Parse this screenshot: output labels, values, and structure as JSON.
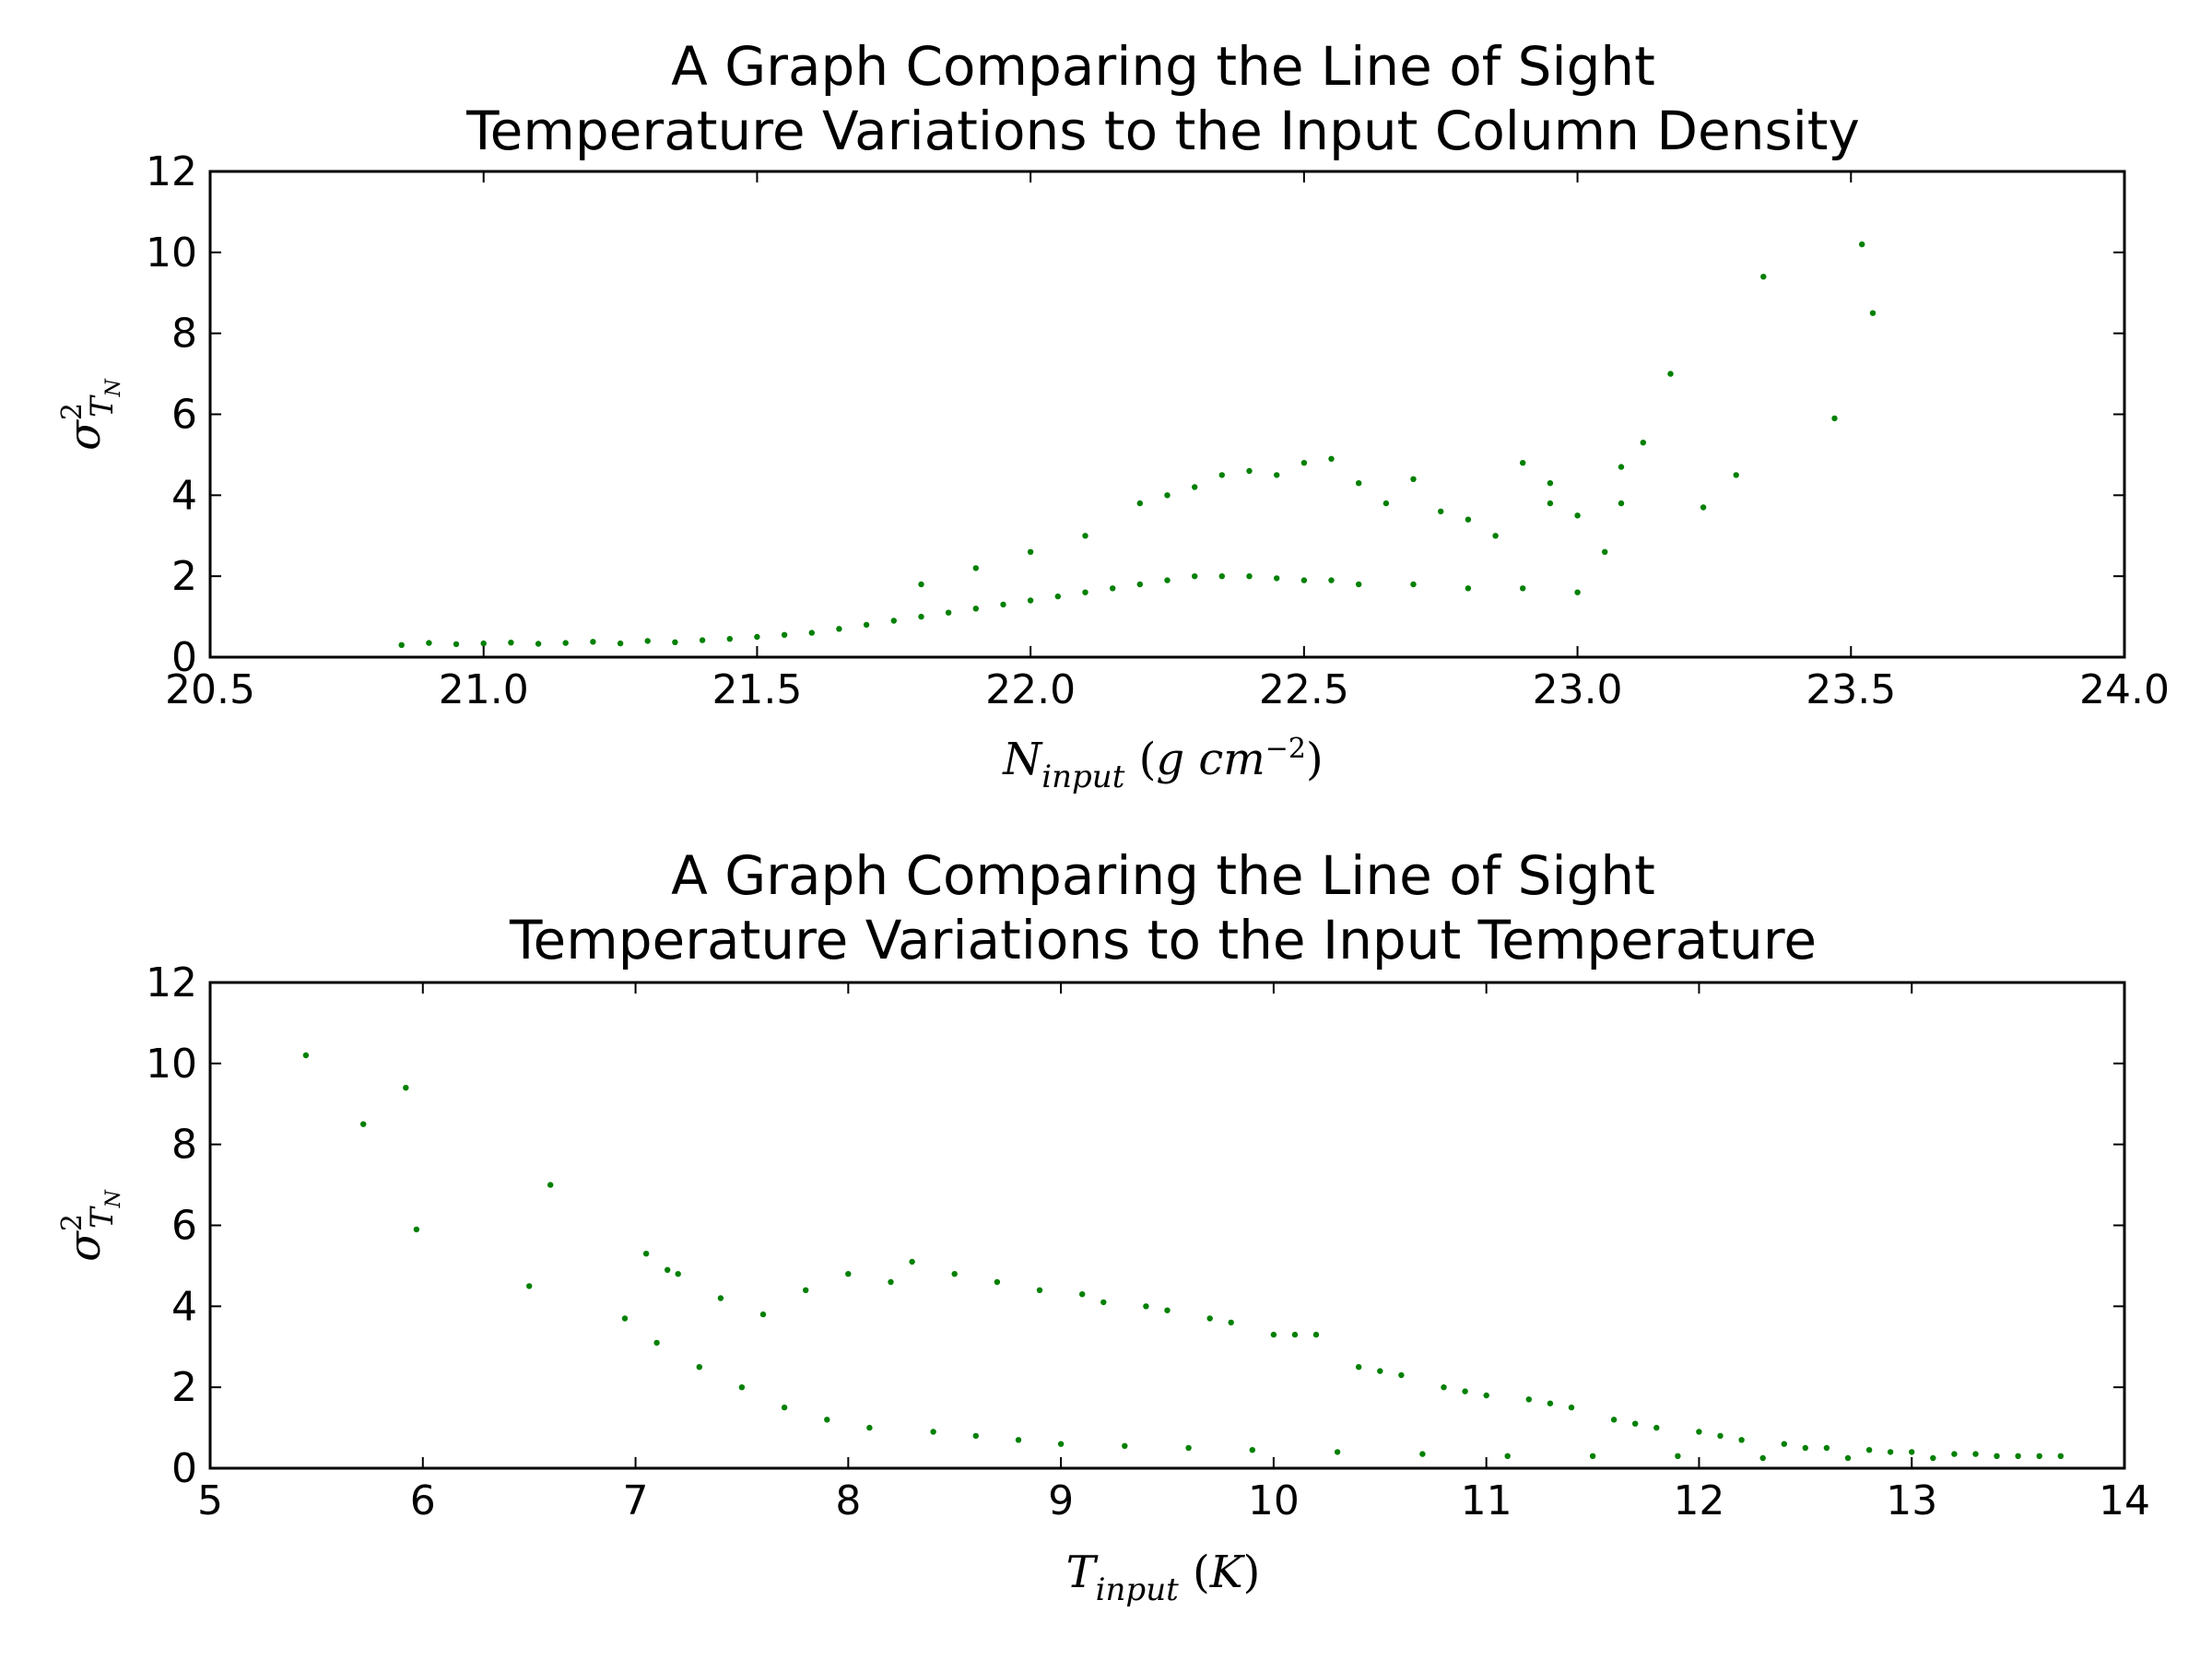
{
  "chart_data": [
    {
      "type": "scatter",
      "title": "A Graph Comparing the Line of Sight\nTemperature Variations to the Input Column Density",
      "title_lines": [
        "A Graph Comparing the Line of Sight",
        "Temperature Variations to the Input Column Density"
      ],
      "xlabel": "N_input (g cm^-2)",
      "ylabel": "σ²_T_N",
      "xlim": [
        20.5,
        24.0
      ],
      "ylim": [
        0,
        12
      ],
      "x_ticks": [
        "20.5",
        "21.0",
        "21.5",
        "22.0",
        "22.5",
        "23.0",
        "23.5",
        "24.0"
      ],
      "y_ticks": [
        "0",
        "2",
        "4",
        "6",
        "8",
        "10",
        "12"
      ],
      "grid": false,
      "marker_color": "#008000",
      "series": [
        {
          "points": [
            [
              20.85,
              0.3
            ],
            [
              20.9,
              0.35
            ],
            [
              20.95,
              0.32
            ],
            [
              21.0,
              0.34
            ],
            [
              21.05,
              0.36
            ],
            [
              21.1,
              0.33
            ],
            [
              21.15,
              0.35
            ],
            [
              21.2,
              0.38
            ],
            [
              21.25,
              0.34
            ],
            [
              21.3,
              0.4
            ],
            [
              21.35,
              0.37
            ],
            [
              21.4,
              0.42
            ],
            [
              21.45,
              0.45
            ],
            [
              21.5,
              0.5
            ],
            [
              21.55,
              0.55
            ],
            [
              21.6,
              0.6
            ],
            [
              21.65,
              0.7
            ],
            [
              21.7,
              0.8
            ],
            [
              21.75,
              0.9
            ],
            [
              21.8,
              1.0
            ],
            [
              21.85,
              1.1
            ],
            [
              21.9,
              1.2
            ],
            [
              21.95,
              1.3
            ],
            [
              22.0,
              1.4
            ],
            [
              22.05,
              1.5
            ],
            [
              22.1,
              1.6
            ],
            [
              22.15,
              1.7
            ],
            [
              22.2,
              1.8
            ],
            [
              22.25,
              1.9
            ],
            [
              22.3,
              2.0
            ],
            [
              22.35,
              2.0
            ],
            [
              22.4,
              2.0
            ],
            [
              22.45,
              1.95
            ],
            [
              22.5,
              1.9
            ],
            [
              22.55,
              1.9
            ],
            [
              22.6,
              1.8
            ],
            [
              22.7,
              1.8
            ],
            [
              22.8,
              1.7
            ],
            [
              22.9,
              1.7
            ],
            [
              23.0,
              1.6
            ],
            [
              21.8,
              1.8
            ],
            [
              21.9,
              2.2
            ],
            [
              22.0,
              2.6
            ],
            [
              22.1,
              3.0
            ],
            [
              22.2,
              3.8
            ],
            [
              22.25,
              4.0
            ],
            [
              22.3,
              4.2
            ],
            [
              22.35,
              4.5
            ],
            [
              22.4,
              4.6
            ],
            [
              22.45,
              4.5
            ],
            [
              22.5,
              4.8
            ],
            [
              22.55,
              4.9
            ],
            [
              22.6,
              4.3
            ],
            [
              22.65,
              3.8
            ],
            [
              22.7,
              4.4
            ],
            [
              22.75,
              3.6
            ],
            [
              22.8,
              3.4
            ],
            [
              22.85,
              3.0
            ],
            [
              22.9,
              4.8
            ],
            [
              22.95,
              4.3
            ],
            [
              22.95,
              3.8
            ],
            [
              23.0,
              3.5
            ],
            [
              23.05,
              2.6
            ],
            [
              23.08,
              4.7
            ],
            [
              23.08,
              3.8
            ],
            [
              23.12,
              5.3
            ],
            [
              23.17,
              7.0
            ],
            [
              23.23,
              3.7
            ],
            [
              23.29,
              4.5
            ],
            [
              23.34,
              9.4
            ],
            [
              23.47,
              5.9
            ],
            [
              23.52,
              10.2
            ],
            [
              23.54,
              8.5
            ]
          ]
        }
      ]
    },
    {
      "type": "scatter",
      "title": "A Graph Comparing the Line of Sight\nTemperature Variations to the Input Temperature",
      "title_lines": [
        "A Graph Comparing the Line of Sight",
        "Temperature Variations to the Input Temperature"
      ],
      "xlabel": "T_input (K)",
      "ylabel": "σ²_T_N",
      "xlim": [
        5,
        14
      ],
      "ylim": [
        0,
        12
      ],
      "x_ticks": [
        "5",
        "6",
        "7",
        "8",
        "9",
        "10",
        "11",
        "12",
        "13",
        "14"
      ],
      "y_ticks": [
        "0",
        "2",
        "4",
        "6",
        "8",
        "10",
        "12"
      ],
      "grid": false,
      "marker_color": "#008000",
      "series": [
        {
          "points": [
            [
              5.45,
              10.2
            ],
            [
              5.72,
              8.5
            ],
            [
              5.92,
              9.4
            ],
            [
              5.97,
              5.9
            ],
            [
              6.5,
              4.5
            ],
            [
              6.6,
              7.0
            ],
            [
              6.95,
              3.7
            ],
            [
              7.05,
              5.3
            ],
            [
              7.1,
              3.1
            ],
            [
              7.15,
              4.9
            ],
            [
              7.2,
              4.8
            ],
            [
              7.3,
              2.5
            ],
            [
              7.4,
              4.2
            ],
            [
              7.5,
              2.0
            ],
            [
              7.6,
              3.8
            ],
            [
              7.7,
              1.5
            ],
            [
              7.8,
              4.4
            ],
            [
              7.9,
              1.2
            ],
            [
              8.0,
              4.8
            ],
            [
              8.1,
              1.0
            ],
            [
              8.2,
              4.6
            ],
            [
              8.3,
              5.1
            ],
            [
              8.4,
              0.9
            ],
            [
              8.5,
              4.8
            ],
            [
              8.6,
              0.8
            ],
            [
              8.7,
              4.6
            ],
            [
              8.8,
              0.7
            ],
            [
              8.9,
              4.4
            ],
            [
              9.0,
              0.6
            ],
            [
              9.1,
              4.3
            ],
            [
              9.2,
              4.1
            ],
            [
              9.3,
              0.55
            ],
            [
              9.4,
              4.0
            ],
            [
              9.5,
              3.9
            ],
            [
              9.6,
              0.5
            ],
            [
              9.7,
              3.7
            ],
            [
              9.8,
              3.6
            ],
            [
              9.9,
              0.45
            ],
            [
              10.0,
              3.3
            ],
            [
              10.1,
              3.3
            ],
            [
              10.2,
              3.3
            ],
            [
              10.3,
              0.4
            ],
            [
              10.4,
              2.5
            ],
            [
              10.5,
              2.4
            ],
            [
              10.6,
              2.3
            ],
            [
              10.7,
              0.35
            ],
            [
              10.8,
              2.0
            ],
            [
              10.9,
              1.9
            ],
            [
              11.0,
              1.8
            ],
            [
              11.1,
              0.3
            ],
            [
              11.2,
              1.7
            ],
            [
              11.3,
              1.6
            ],
            [
              11.4,
              1.5
            ],
            [
              11.5,
              0.3
            ],
            [
              11.6,
              1.2
            ],
            [
              11.7,
              1.1
            ],
            [
              11.8,
              1.0
            ],
            [
              11.9,
              0.3
            ],
            [
              12.0,
              0.9
            ],
            [
              12.1,
              0.8
            ],
            [
              12.2,
              0.7
            ],
            [
              12.3,
              0.25
            ],
            [
              12.4,
              0.6
            ],
            [
              12.5,
              0.5
            ],
            [
              12.6,
              0.5
            ],
            [
              12.7,
              0.25
            ],
            [
              12.8,
              0.45
            ],
            [
              12.9,
              0.4
            ],
            [
              13.0,
              0.4
            ],
            [
              13.1,
              0.25
            ],
            [
              13.2,
              0.35
            ],
            [
              13.3,
              0.35
            ],
            [
              13.4,
              0.3
            ],
            [
              13.5,
              0.3
            ],
            [
              13.6,
              0.3
            ],
            [
              13.7,
              0.3
            ]
          ]
        }
      ]
    }
  ]
}
